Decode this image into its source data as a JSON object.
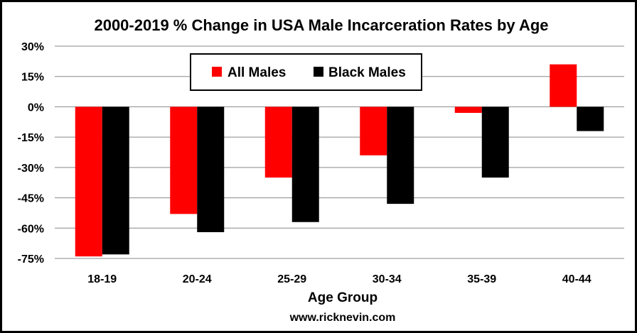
{
  "chart_data": {
    "type": "bar",
    "title": "2000-2019 % Change in USA Male Incarceration Rates by Age",
    "xlabel": "Age Group",
    "ylabel": "",
    "source": "www.ricknevin.com",
    "categories": [
      "18-19",
      "20-24",
      "25-29",
      "30-34",
      "35-39",
      "40-44"
    ],
    "series": [
      {
        "name": "All Males",
        "color": "#ff0000",
        "values": [
          -74,
          -53,
          -35,
          -24,
          -3,
          21
        ]
      },
      {
        "name": "Black Males",
        "color": "#000000",
        "values": [
          -73,
          -62,
          -57,
          -48,
          -35,
          -12
        ]
      }
    ],
    "ylim": [
      -75,
      30
    ],
    "yticks": [
      30,
      15,
      0,
      -15,
      -30,
      -45,
      -60,
      -75
    ],
    "ytick_labels": [
      "30%",
      "15%",
      "0%",
      "-15%",
      "-30%",
      "-45%",
      "-60%",
      "-75%"
    ],
    "grid": true,
    "legend_position": "top-center"
  }
}
